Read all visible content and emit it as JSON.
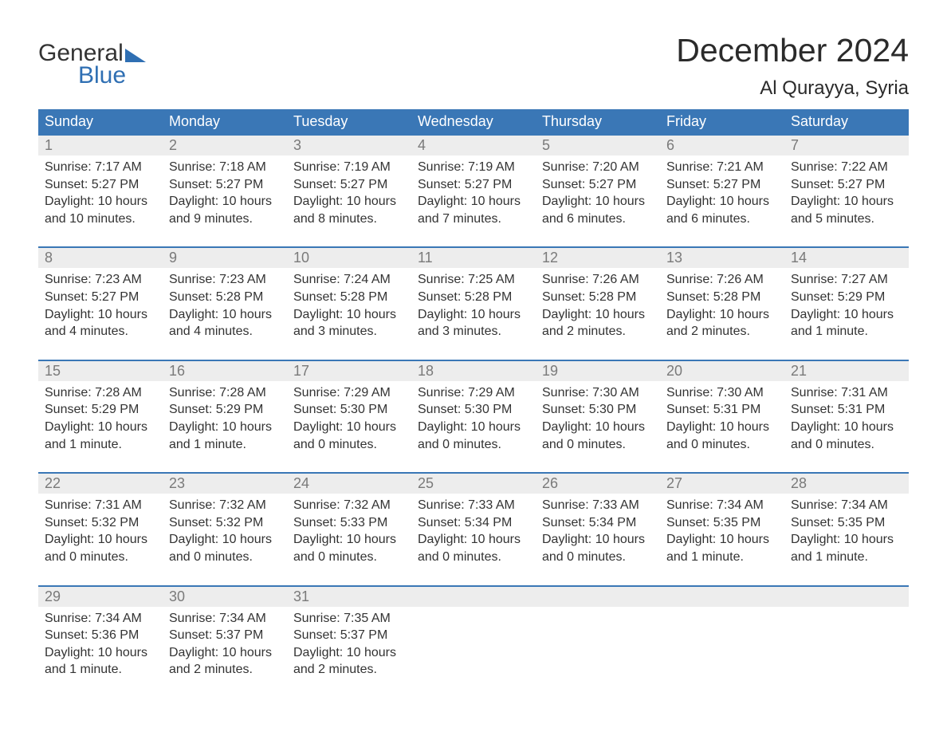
{
  "logo": {
    "line1": "General",
    "line2": "Blue"
  },
  "header": {
    "month_title": "December 2024",
    "location": "Al Qurayya, Syria"
  },
  "colors": {
    "header_bg": "#3a77b6",
    "header_text": "#ffffff",
    "daynum_bg": "#ededed",
    "daynum_text": "#7a7a7a",
    "body_text": "#333333",
    "row_divider": "#3a77b6",
    "brand_blue": "#2f6fb3",
    "page_bg": "#ffffff"
  },
  "typography": {
    "month_title_size_pt": 31,
    "location_size_pt": 18,
    "day_header_size_pt": 14,
    "daynum_size_pt": 14,
    "body_size_pt": 12,
    "font_family": "Arial"
  },
  "labels": {
    "sunrise_prefix": "Sunrise: ",
    "sunset_prefix": "Sunset: ",
    "daylight_prefix": "Daylight: "
  },
  "calendar": {
    "type": "table",
    "columns": [
      "Sunday",
      "Monday",
      "Tuesday",
      "Wednesday",
      "Thursday",
      "Friday",
      "Saturday"
    ],
    "weeks": [
      [
        {
          "day": 1,
          "sunrise": "7:17 AM",
          "sunset": "5:27 PM",
          "daylight": "10 hours and 10 minutes."
        },
        {
          "day": 2,
          "sunrise": "7:18 AM",
          "sunset": "5:27 PM",
          "daylight": "10 hours and 9 minutes."
        },
        {
          "day": 3,
          "sunrise": "7:19 AM",
          "sunset": "5:27 PM",
          "daylight": "10 hours and 8 minutes."
        },
        {
          "day": 4,
          "sunrise": "7:19 AM",
          "sunset": "5:27 PM",
          "daylight": "10 hours and 7 minutes."
        },
        {
          "day": 5,
          "sunrise": "7:20 AM",
          "sunset": "5:27 PM",
          "daylight": "10 hours and 6 minutes."
        },
        {
          "day": 6,
          "sunrise": "7:21 AM",
          "sunset": "5:27 PM",
          "daylight": "10 hours and 6 minutes."
        },
        {
          "day": 7,
          "sunrise": "7:22 AM",
          "sunset": "5:27 PM",
          "daylight": "10 hours and 5 minutes."
        }
      ],
      [
        {
          "day": 8,
          "sunrise": "7:23 AM",
          "sunset": "5:27 PM",
          "daylight": "10 hours and 4 minutes."
        },
        {
          "day": 9,
          "sunrise": "7:23 AM",
          "sunset": "5:28 PM",
          "daylight": "10 hours and 4 minutes."
        },
        {
          "day": 10,
          "sunrise": "7:24 AM",
          "sunset": "5:28 PM",
          "daylight": "10 hours and 3 minutes."
        },
        {
          "day": 11,
          "sunrise": "7:25 AM",
          "sunset": "5:28 PM",
          "daylight": "10 hours and 3 minutes."
        },
        {
          "day": 12,
          "sunrise": "7:26 AM",
          "sunset": "5:28 PM",
          "daylight": "10 hours and 2 minutes."
        },
        {
          "day": 13,
          "sunrise": "7:26 AM",
          "sunset": "5:28 PM",
          "daylight": "10 hours and 2 minutes."
        },
        {
          "day": 14,
          "sunrise": "7:27 AM",
          "sunset": "5:29 PM",
          "daylight": "10 hours and 1 minute."
        }
      ],
      [
        {
          "day": 15,
          "sunrise": "7:28 AM",
          "sunset": "5:29 PM",
          "daylight": "10 hours and 1 minute."
        },
        {
          "day": 16,
          "sunrise": "7:28 AM",
          "sunset": "5:29 PM",
          "daylight": "10 hours and 1 minute."
        },
        {
          "day": 17,
          "sunrise": "7:29 AM",
          "sunset": "5:30 PM",
          "daylight": "10 hours and 0 minutes."
        },
        {
          "day": 18,
          "sunrise": "7:29 AM",
          "sunset": "5:30 PM",
          "daylight": "10 hours and 0 minutes."
        },
        {
          "day": 19,
          "sunrise": "7:30 AM",
          "sunset": "5:30 PM",
          "daylight": "10 hours and 0 minutes."
        },
        {
          "day": 20,
          "sunrise": "7:30 AM",
          "sunset": "5:31 PM",
          "daylight": "10 hours and 0 minutes."
        },
        {
          "day": 21,
          "sunrise": "7:31 AM",
          "sunset": "5:31 PM",
          "daylight": "10 hours and 0 minutes."
        }
      ],
      [
        {
          "day": 22,
          "sunrise": "7:31 AM",
          "sunset": "5:32 PM",
          "daylight": "10 hours and 0 minutes."
        },
        {
          "day": 23,
          "sunrise": "7:32 AM",
          "sunset": "5:32 PM",
          "daylight": "10 hours and 0 minutes."
        },
        {
          "day": 24,
          "sunrise": "7:32 AM",
          "sunset": "5:33 PM",
          "daylight": "10 hours and 0 minutes."
        },
        {
          "day": 25,
          "sunrise": "7:33 AM",
          "sunset": "5:34 PM",
          "daylight": "10 hours and 0 minutes."
        },
        {
          "day": 26,
          "sunrise": "7:33 AM",
          "sunset": "5:34 PM",
          "daylight": "10 hours and 0 minutes."
        },
        {
          "day": 27,
          "sunrise": "7:34 AM",
          "sunset": "5:35 PM",
          "daylight": "10 hours and 1 minute."
        },
        {
          "day": 28,
          "sunrise": "7:34 AM",
          "sunset": "5:35 PM",
          "daylight": "10 hours and 1 minute."
        }
      ],
      [
        {
          "day": 29,
          "sunrise": "7:34 AM",
          "sunset": "5:36 PM",
          "daylight": "10 hours and 1 minute."
        },
        {
          "day": 30,
          "sunrise": "7:34 AM",
          "sunset": "5:37 PM",
          "daylight": "10 hours and 2 minutes."
        },
        {
          "day": 31,
          "sunrise": "7:35 AM",
          "sunset": "5:37 PM",
          "daylight": "10 hours and 2 minutes."
        },
        null,
        null,
        null,
        null
      ]
    ]
  }
}
